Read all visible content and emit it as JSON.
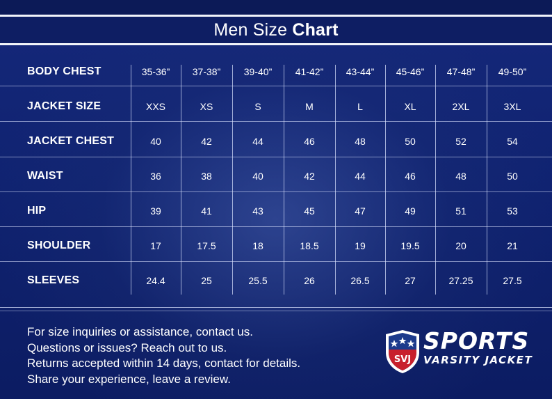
{
  "title": {
    "regular": "Men Size ",
    "bold": "Chart"
  },
  "table": {
    "columns": [
      "35-36”",
      "37-38”",
      "39-40”",
      "41-42”",
      "43-44”",
      "45-46”",
      "47-48”",
      "49-50”"
    ],
    "header_label": "BODY CHEST",
    "rows": [
      {
        "label": "JACKET SIZE",
        "values": [
          "XXS",
          "XS",
          "S",
          "M",
          "L",
          "XL",
          "2XL",
          "3XL"
        ]
      },
      {
        "label": "JACKET CHEST",
        "values": [
          "40",
          "42",
          "44",
          "46",
          "48",
          "50",
          "52",
          "54"
        ]
      },
      {
        "label": "WAIST",
        "values": [
          "36",
          "38",
          "40",
          "42",
          "44",
          "46",
          "48",
          "50"
        ]
      },
      {
        "label": "HIP",
        "values": [
          "39",
          "41",
          "43",
          "45",
          "47",
          "49",
          "51",
          "53"
        ]
      },
      {
        "label": "SHOULDER",
        "values": [
          "17",
          "17.5",
          "18",
          "18.5",
          "19",
          "19.5",
          "20",
          "21"
        ]
      },
      {
        "label": "SLEEVES",
        "values": [
          "24.4",
          "25",
          "25.5",
          "26",
          "26.5",
          "27",
          "27.25",
          "27.5"
        ]
      }
    ]
  },
  "footer": {
    "lines": [
      "For size inquiries or assistance, contact us.",
      "Questions or issues? Reach out to us.",
      "Returns accepted within 14 days, contact for details.",
      "Share your experience, leave a review."
    ]
  },
  "logo": {
    "badge_text": "SVJ",
    "word1": "SPORTS",
    "word2": "VARSITY JACKET"
  },
  "colors": {
    "background": "#0f1f5c",
    "badge_red": "#c8202c",
    "badge_blue": "#1c3a8c",
    "text": "#ffffff"
  }
}
